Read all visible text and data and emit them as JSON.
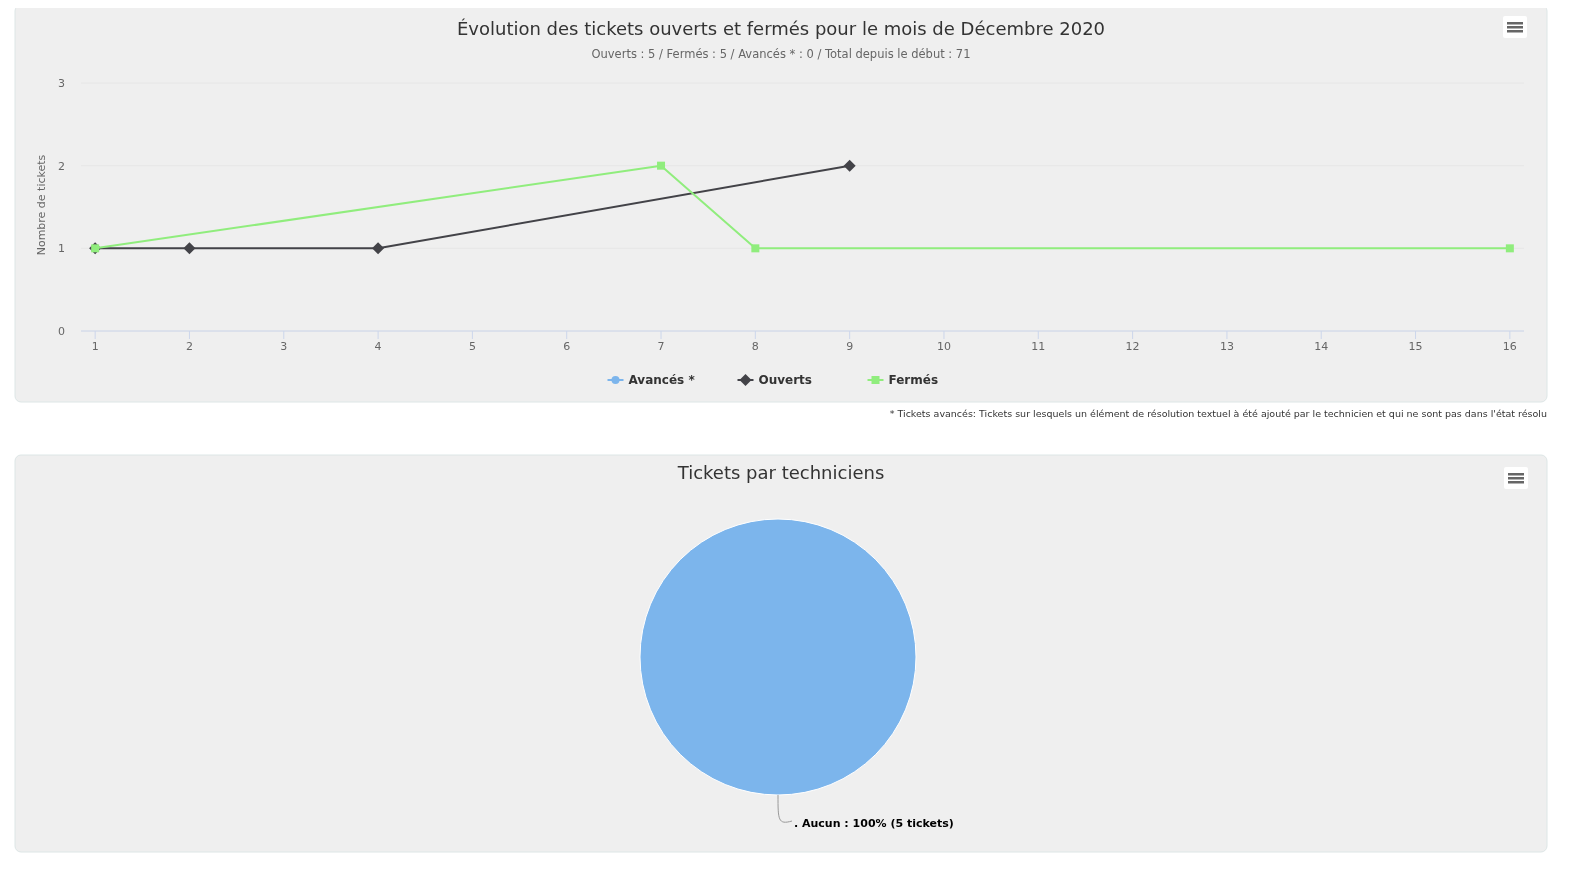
{
  "chart_data": [
    {
      "type": "line",
      "title": "Évolution des tickets ouverts et fermés pour le mois de Décembre 2020",
      "subtitle": "Ouverts : 5 / Fermés : 5 / Avancés * : 0 / Total depuis le début : 71",
      "ylabel": "Nombre de tickets",
      "xlim": [
        0.85,
        16.15
      ],
      "xticks": [
        1,
        2,
        3,
        4,
        5,
        6,
        7,
        8,
        9,
        10,
        11,
        12,
        13,
        14,
        15,
        16
      ],
      "ylim": [
        0,
        3
      ],
      "yticks": [
        0,
        1,
        2,
        3
      ],
      "grid": "y",
      "legend": "bottom",
      "series": [
        {
          "name": "Avancés *",
          "color": "#7cb5ec",
          "marker": "circle"
        },
        {
          "name": "Ouverts",
          "color": "#434348",
          "marker": "diamond",
          "x": [
            1,
            2,
            4,
            9
          ],
          "values": [
            1,
            1,
            1,
            2
          ]
        },
        {
          "name": "Fermés",
          "color": "#90ed7d",
          "marker": "square",
          "x": [
            1,
            7,
            8,
            16
          ],
          "values": [
            1,
            2,
            1,
            1
          ]
        }
      ],
      "annotations": [
        "* Tickets avancés: Tickets sur lesquels un élément de résolution textuel à été ajouté par le technicien et qui ne sont pas dans l'état résolu"
      ]
    },
    {
      "type": "pie",
      "title": "Tickets par techniciens",
      "categories": [
        ". Aucun"
      ],
      "values": [
        100
      ],
      "colors": [
        "#7cb5ec"
      ],
      "value_labels": [
        "100% (5 tickets)"
      ]
    }
  ]
}
